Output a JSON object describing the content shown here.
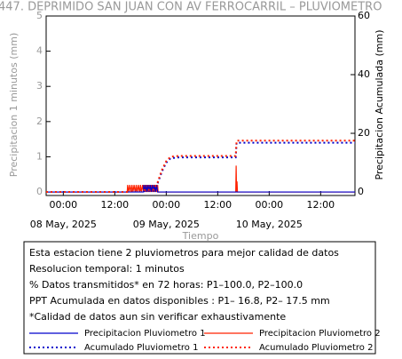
{
  "chart_data": {
    "type": "line",
    "title": "447. DEPRIMIDO SAN JUAN CON AV FERROCARRIL – PLUVIOMETRO",
    "ylabel": "Precipitacion 1 minutos (mm)",
    "y2label": "Precipitacion Acumulada (mm)",
    "xlabel": "Tiempo",
    "xlim": [
      -4,
      68
    ],
    "xticks": [
      {
        "value": 0,
        "label": "00:00"
      },
      {
        "value": 12,
        "label": "12:00"
      },
      {
        "value": 24,
        "label": "00:00"
      },
      {
        "value": 36,
        "label": "12:00"
      },
      {
        "value": 48,
        "label": "00:00"
      },
      {
        "value": 60,
        "label": "12:00"
      }
    ],
    "date_labels": [
      {
        "value": 0,
        "label": "08 May, 2025"
      },
      {
        "value": 24,
        "label": "09 May, 2025"
      },
      {
        "value": 48,
        "label": "10 May, 2025"
      }
    ],
    "ylim": [
      -0.1,
      5
    ],
    "yticks": [
      0,
      1,
      2,
      3,
      4,
      5
    ],
    "y2lim": [
      -1.2,
      60
    ],
    "y2ticks": [
      0,
      20,
      40,
      60
    ],
    "series": [
      {
        "name": "Precipitacion Pluviometro 2",
        "color": "#ff2200",
        "style": "solid",
        "x": [
          -4,
          14.9,
          15,
          15.25,
          15.5,
          15.75,
          16,
          16.25,
          16.5,
          16.75,
          17,
          17.25,
          17.5,
          17.75,
          18,
          18.25,
          18.5,
          18.75,
          19,
          19.25,
          19.5,
          19.75,
          20,
          20.25,
          20.5,
          20.75,
          21,
          21.25,
          21.5,
          21.75,
          22,
          22.1,
          40.2,
          40.3,
          40.4,
          40.5,
          40.6,
          68
        ],
        "values": [
          0,
          0,
          0.2,
          0,
          0.2,
          0,
          0.2,
          0,
          0.2,
          0,
          0.2,
          0,
          0.2,
          0,
          0.2,
          0,
          0.2,
          0,
          0.2,
          0,
          0.2,
          0,
          0.2,
          0,
          0.2,
          0,
          0.2,
          0,
          0.2,
          0,
          0.2,
          0,
          0,
          0.75,
          0,
          0.3,
          0,
          0
        ]
      },
      {
        "name": "Precipitacion Pluviometro 1",
        "color": "#0000cc",
        "style": "solid",
        "x": [
          -4,
          18.7,
          18.75,
          19,
          19.25,
          19.5,
          19.75,
          20,
          20.25,
          20.5,
          20.75,
          21,
          21.25,
          21.5,
          21.75,
          22,
          22.1,
          68
        ],
        "values": [
          0,
          0,
          0.2,
          0,
          0.2,
          0,
          0.2,
          0,
          0.2,
          0,
          0.2,
          0,
          0.2,
          0,
          0.2,
          0,
          0,
          0
        ]
      },
      {
        "name": "Acumulado Pluviometro 1",
        "color": "#0000cc",
        "style": "dotted",
        "axis": "y2",
        "x": [
          -4,
          15,
          16,
          21,
          22,
          23,
          24,
          25,
          27,
          40.2,
          40.4,
          68
        ],
        "values": [
          0,
          0,
          0.5,
          0.7,
          3,
          7,
          10,
          11.5,
          11.8,
          11.8,
          16.8,
          16.8
        ]
      },
      {
        "name": "Acumulado Pluviometro 2",
        "color": "#ff2200",
        "style": "dotted",
        "axis": "y2",
        "x": [
          -4,
          15,
          16,
          21,
          22,
          23,
          24,
          25,
          27,
          40.2,
          40.4,
          68
        ],
        "values": [
          0,
          0,
          0.5,
          0.8,
          3.3,
          7.5,
          10.5,
          12,
          12.3,
          12.3,
          17.5,
          17.5
        ]
      }
    ],
    "notes": [
      "Esta estacion tiene 2 pluviometros para mejor calidad de datos",
      "Resolucion temporal: 1 minutos",
      "% Datos transmitidos* en 72 horas: P1–100.0, P2–100.0",
      "PPT Acumulada en datos disponibles : P1– 16.8, P2– 17.5 mm",
      "*Calidad de datos aun sin verificar exhaustivamente"
    ],
    "legend": [
      1,
      0,
      2,
      3
    ]
  }
}
